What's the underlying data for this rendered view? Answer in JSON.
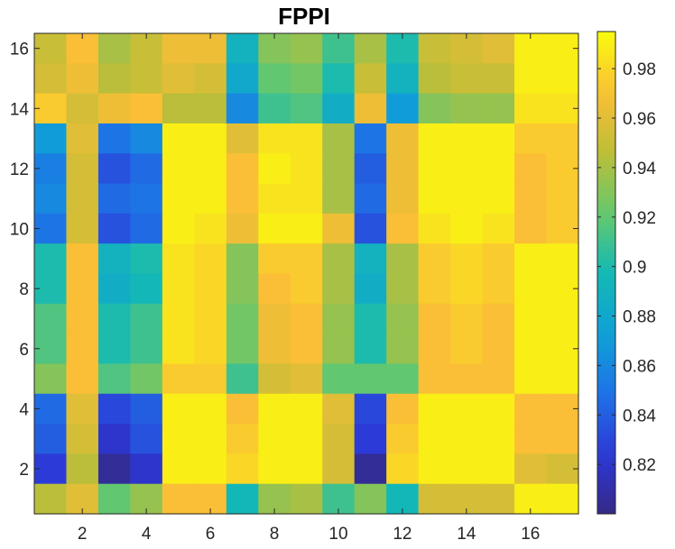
{
  "chart_data": {
    "type": "heatmap",
    "title": "FPPI",
    "xlabel": "",
    "ylabel": "",
    "x_ticks": [
      2,
      4,
      6,
      8,
      10,
      12,
      14,
      16
    ],
    "y_ticks": [
      2,
      4,
      6,
      8,
      10,
      12,
      14,
      16
    ],
    "xlim": [
      0.5,
      17.5
    ],
    "ylim": [
      0.5,
      16.5
    ],
    "colorbar": {
      "colormap": "parula",
      "range": [
        0.8,
        0.995
      ],
      "ticks": [
        0.82,
        0.84,
        0.86,
        0.88,
        0.9,
        0.92,
        0.94,
        0.96,
        0.98
      ],
      "tick_labels": [
        "0.82",
        "0.84",
        "0.86",
        "0.88",
        "0.9",
        "0.92",
        "0.94",
        "0.96",
        "0.98"
      ]
    },
    "rows_top_to_bottom": [
      {
        "y": 16,
        "values": [
          0.95,
          0.97,
          0.94,
          0.95,
          0.965,
          0.965,
          0.89,
          0.93,
          0.935,
          0.91,
          0.94,
          0.9,
          0.95,
          0.955,
          0.96,
          0.99,
          0.99
        ]
      },
      {
        "y": 15,
        "values": [
          0.955,
          0.965,
          0.945,
          0.95,
          0.96,
          0.955,
          0.88,
          0.92,
          0.925,
          0.9,
          0.95,
          0.89,
          0.945,
          0.95,
          0.95,
          0.99,
          0.99
        ]
      },
      {
        "y": 14,
        "values": [
          0.975,
          0.955,
          0.965,
          0.97,
          0.945,
          0.945,
          0.86,
          0.91,
          0.915,
          0.885,
          0.965,
          0.87,
          0.93,
          0.935,
          0.935,
          0.985,
          0.985
        ]
      },
      {
        "y": 13,
        "values": [
          0.87,
          0.96,
          0.85,
          0.86,
          0.99,
          0.99,
          0.96,
          0.985,
          0.985,
          0.94,
          0.85,
          0.965,
          0.99,
          0.99,
          0.99,
          0.975,
          0.975
        ]
      },
      {
        "y": 12,
        "values": [
          0.855,
          0.955,
          0.835,
          0.845,
          0.99,
          0.99,
          0.97,
          0.99,
          0.985,
          0.94,
          0.84,
          0.965,
          0.99,
          0.99,
          0.99,
          0.97,
          0.975
        ]
      },
      {
        "y": 11,
        "values": [
          0.86,
          0.955,
          0.845,
          0.85,
          0.99,
          0.99,
          0.97,
          0.985,
          0.985,
          0.94,
          0.845,
          0.965,
          0.99,
          0.99,
          0.99,
          0.97,
          0.975
        ]
      },
      {
        "y": 10,
        "values": [
          0.85,
          0.955,
          0.835,
          0.845,
          0.99,
          0.985,
          0.965,
          0.99,
          0.99,
          0.965,
          0.835,
          0.97,
          0.985,
          0.99,
          0.985,
          0.97,
          0.975
        ]
      },
      {
        "y": 9,
        "values": [
          0.9,
          0.97,
          0.89,
          0.9,
          0.985,
          0.98,
          0.93,
          0.975,
          0.975,
          0.94,
          0.89,
          0.94,
          0.975,
          0.98,
          0.975,
          0.99,
          0.99
        ]
      },
      {
        "y": 8,
        "values": [
          0.9,
          0.97,
          0.885,
          0.895,
          0.985,
          0.98,
          0.93,
          0.97,
          0.975,
          0.94,
          0.885,
          0.94,
          0.975,
          0.98,
          0.975,
          0.99,
          0.99
        ]
      },
      {
        "y": 7,
        "values": [
          0.915,
          0.97,
          0.9,
          0.91,
          0.985,
          0.98,
          0.925,
          0.965,
          0.97,
          0.935,
          0.9,
          0.935,
          0.97,
          0.975,
          0.97,
          0.99,
          0.99
        ]
      },
      {
        "y": 6,
        "values": [
          0.915,
          0.97,
          0.9,
          0.91,
          0.985,
          0.98,
          0.925,
          0.965,
          0.97,
          0.935,
          0.9,
          0.935,
          0.97,
          0.975,
          0.97,
          0.99,
          0.99
        ]
      },
      {
        "y": 5,
        "values": [
          0.93,
          0.97,
          0.915,
          0.925,
          0.975,
          0.975,
          0.91,
          0.955,
          0.96,
          0.92,
          0.92,
          0.92,
          0.97,
          0.97,
          0.97,
          0.99,
          0.99
        ]
      },
      {
        "y": 4,
        "values": [
          0.845,
          0.96,
          0.83,
          0.84,
          0.99,
          0.99,
          0.97,
          0.99,
          0.99,
          0.96,
          0.83,
          0.97,
          0.99,
          0.99,
          0.99,
          0.97,
          0.97
        ]
      },
      {
        "y": 3,
        "values": [
          0.84,
          0.955,
          0.82,
          0.835,
          0.99,
          0.99,
          0.975,
          0.99,
          0.99,
          0.955,
          0.825,
          0.975,
          0.99,
          0.99,
          0.99,
          0.97,
          0.97
        ]
      },
      {
        "y": 2,
        "values": [
          0.825,
          0.945,
          0.805,
          0.82,
          0.99,
          0.99,
          0.98,
          0.99,
          0.99,
          0.955,
          0.805,
          0.98,
          0.99,
          0.99,
          0.99,
          0.96,
          0.955
        ]
      },
      {
        "y": 1,
        "values": [
          0.945,
          0.96,
          0.92,
          0.935,
          0.97,
          0.97,
          0.895,
          0.935,
          0.94,
          0.91,
          0.93,
          0.895,
          0.955,
          0.955,
          0.955,
          0.99,
          0.99
        ]
      }
    ]
  }
}
